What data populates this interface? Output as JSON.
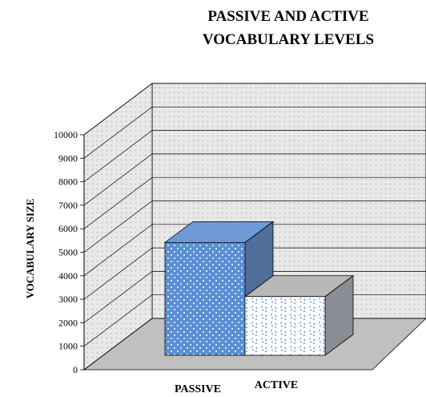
{
  "chart_data": {
    "type": "bar",
    "style": "3d",
    "title": "PASSIVE AND ACTIVE VOCABULARY LEVELS",
    "title_lines": [
      "PASSIVE AND ACTIVE",
      "VOCABULARY LEVELS"
    ],
    "xlabel": "",
    "ylabel": "VOCABULARY SIZE",
    "categories": [
      "PASSIVE",
      "ACTIVE"
    ],
    "values": [
      4800,
      2500
    ],
    "ylim": [
      0,
      10000
    ],
    "yticks": [
      0,
      1000,
      2000,
      3000,
      4000,
      5000,
      6000,
      7000,
      8000,
      9000,
      10000
    ],
    "grid": true,
    "legend": "none",
    "colors": {
      "PASSIVE": "#5a8fd4",
      "ACTIVE": "#ffffff",
      "wall": "#f0f0f0",
      "floor": "#c0c0c0"
    }
  }
}
